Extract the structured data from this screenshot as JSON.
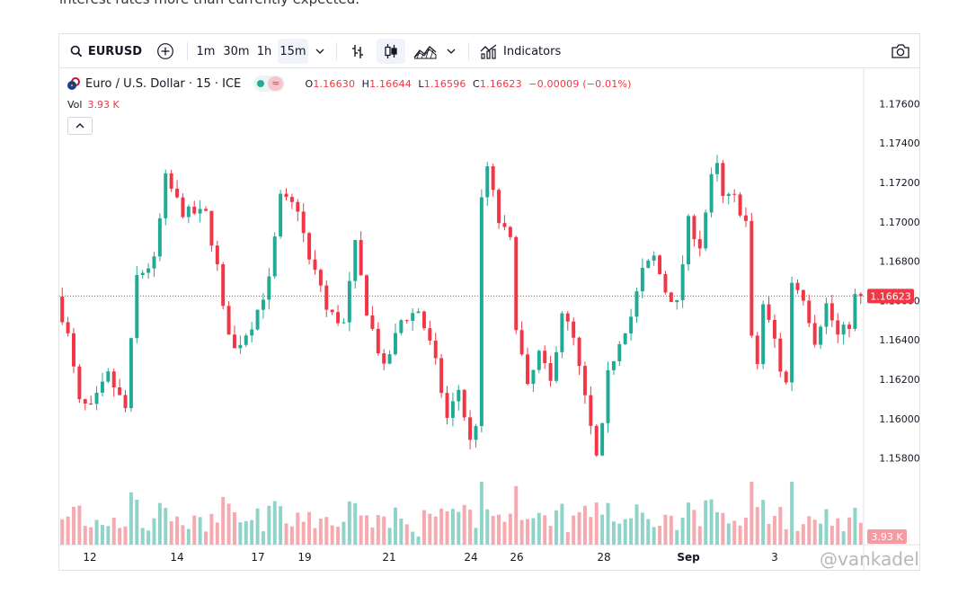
{
  "lead_text": "interest rates more than currently expected.",
  "toolbar": {
    "symbol": "EURUSD",
    "intervals": [
      "1m",
      "30m",
      "1h",
      "15m"
    ],
    "active_interval": "15m",
    "indicators_label": "Indicators",
    "icons": [
      "search-icon",
      "add-symbol-icon",
      "chevron-down-icon",
      "bar-chart-icon",
      "candlestick-icon",
      "chart-type-icon",
      "indicators-icon",
      "camera-icon"
    ]
  },
  "legend": {
    "name": "Euro / U.S. Dollar · 15 · ICE",
    "o_key": "O",
    "o_val": "1.16630",
    "h_key": "H",
    "h_val": "1.16644",
    "l_key": "L",
    "l_val": "1.16596",
    "c_key": "C",
    "c_val": "1.16623",
    "change": "−0.00009 (−0.01%)",
    "badge_symbol": "≈"
  },
  "volume": {
    "label": "Vol",
    "value": "3.93 K"
  },
  "watermark": "@vankadel",
  "colors": {
    "up": "#22ab94",
    "down": "#f23645",
    "up_volume": "#7ccdc0",
    "down_volume": "#f59aa1",
    "price_line": "#f23645"
  },
  "chart_data": {
    "type": "candlestick",
    "x_tick_labels": [
      "12",
      "14",
      "17",
      "19",
      "21",
      "24",
      "26",
      "28",
      "Sep",
      "3"
    ],
    "y_tick_labels": [
      "1.17600",
      "1.17400",
      "1.17200",
      "1.17000",
      "1.16800",
      "1.16600",
      "1.16400",
      "1.16200",
      "1.16000",
      "1.15800"
    ],
    "ylim": [
      1.1536,
      1.1778
    ],
    "last_price": 1.16623,
    "last_price_label": "1.16623",
    "volume_label": "3.93 K",
    "price_path": [
      {
        "t": 0,
        "p": 1.1662
      },
      {
        "t": 2,
        "p": 1.1642
      },
      {
        "t": 4,
        "p": 1.1608
      },
      {
        "t": 6,
        "p": 1.1605
      },
      {
        "t": 9,
        "p": 1.1622
      },
      {
        "t": 12,
        "p": 1.1605
      },
      {
        "t": 14,
        "p": 1.1672
      },
      {
        "t": 17,
        "p": 1.168
      },
      {
        "t": 19,
        "p": 1.1722
      },
      {
        "t": 22,
        "p": 1.1705
      },
      {
        "t": 26,
        "p": 1.1704
      },
      {
        "t": 28,
        "p": 1.1677
      },
      {
        "t": 29,
        "p": 1.1655
      },
      {
        "t": 31,
        "p": 1.1635
      },
      {
        "t": 34,
        "p": 1.1648
      },
      {
        "t": 37,
        "p": 1.167
      },
      {
        "t": 39,
        "p": 1.1712
      },
      {
        "t": 42,
        "p": 1.1707
      },
      {
        "t": 44,
        "p": 1.168
      },
      {
        "t": 46,
        "p": 1.1668
      },
      {
        "t": 47,
        "p": 1.1655
      },
      {
        "t": 50,
        "p": 1.1648
      },
      {
        "t": 52,
        "p": 1.1688
      },
      {
        "t": 54,
        "p": 1.1655
      },
      {
        "t": 57,
        "p": 1.1625
      },
      {
        "t": 60,
        "p": 1.165
      },
      {
        "t": 63,
        "p": 1.1655
      },
      {
        "t": 65,
        "p": 1.1638
      },
      {
        "t": 66,
        "p": 1.1628
      },
      {
        "t": 68,
        "p": 1.16
      },
      {
        "t": 70,
        "p": 1.1615
      },
      {
        "t": 72,
        "p": 1.1588
      },
      {
        "t": 73,
        "p": 1.1598
      },
      {
        "t": 74,
        "p": 1.171
      },
      {
        "t": 75,
        "p": 1.1728
      },
      {
        "t": 77,
        "p": 1.17
      },
      {
        "t": 79,
        "p": 1.169
      },
      {
        "t": 80,
        "p": 1.1648
      },
      {
        "t": 82,
        "p": 1.1615
      },
      {
        "t": 84,
        "p": 1.1633
      },
      {
        "t": 86,
        "p": 1.1618
      },
      {
        "t": 88,
        "p": 1.1655
      },
      {
        "t": 90,
        "p": 1.164
      },
      {
        "t": 92,
        "p": 1.161
      },
      {
        "t": 94,
        "p": 1.158
      },
      {
        "t": 95,
        "p": 1.1595
      },
      {
        "t": 96,
        "p": 1.1622
      },
      {
        "t": 98,
        "p": 1.164
      },
      {
        "t": 100,
        "p": 1.1652
      },
      {
        "t": 102,
        "p": 1.1675
      },
      {
        "t": 104,
        "p": 1.1682
      },
      {
        "t": 106,
        "p": 1.1665
      },
      {
        "t": 108,
        "p": 1.1658
      },
      {
        "t": 110,
        "p": 1.17
      },
      {
        "t": 112,
        "p": 1.1688
      },
      {
        "t": 114,
        "p": 1.1722
      },
      {
        "t": 115,
        "p": 1.1728
      },
      {
        "t": 116,
        "p": 1.1712
      },
      {
        "t": 118,
        "p": 1.1712
      },
      {
        "t": 120,
        "p": 1.17
      },
      {
        "t": 121,
        "p": 1.164
      },
      {
        "t": 122,
        "p": 1.1628
      },
      {
        "t": 123,
        "p": 1.1658
      },
      {
        "t": 125,
        "p": 1.164
      },
      {
        "t": 126,
        "p": 1.1625
      },
      {
        "t": 127,
        "p": 1.1618
      },
      {
        "t": 128,
        "p": 1.167
      },
      {
        "t": 130,
        "p": 1.1662
      },
      {
        "t": 132,
        "p": 1.164
      },
      {
        "t": 134,
        "p": 1.1658
      },
      {
        "t": 136,
        "p": 1.1642
      },
      {
        "t": 138,
        "p": 1.1648
      },
      {
        "t": 139,
        "p": 1.1662
      }
    ],
    "n_candles": 140
  }
}
